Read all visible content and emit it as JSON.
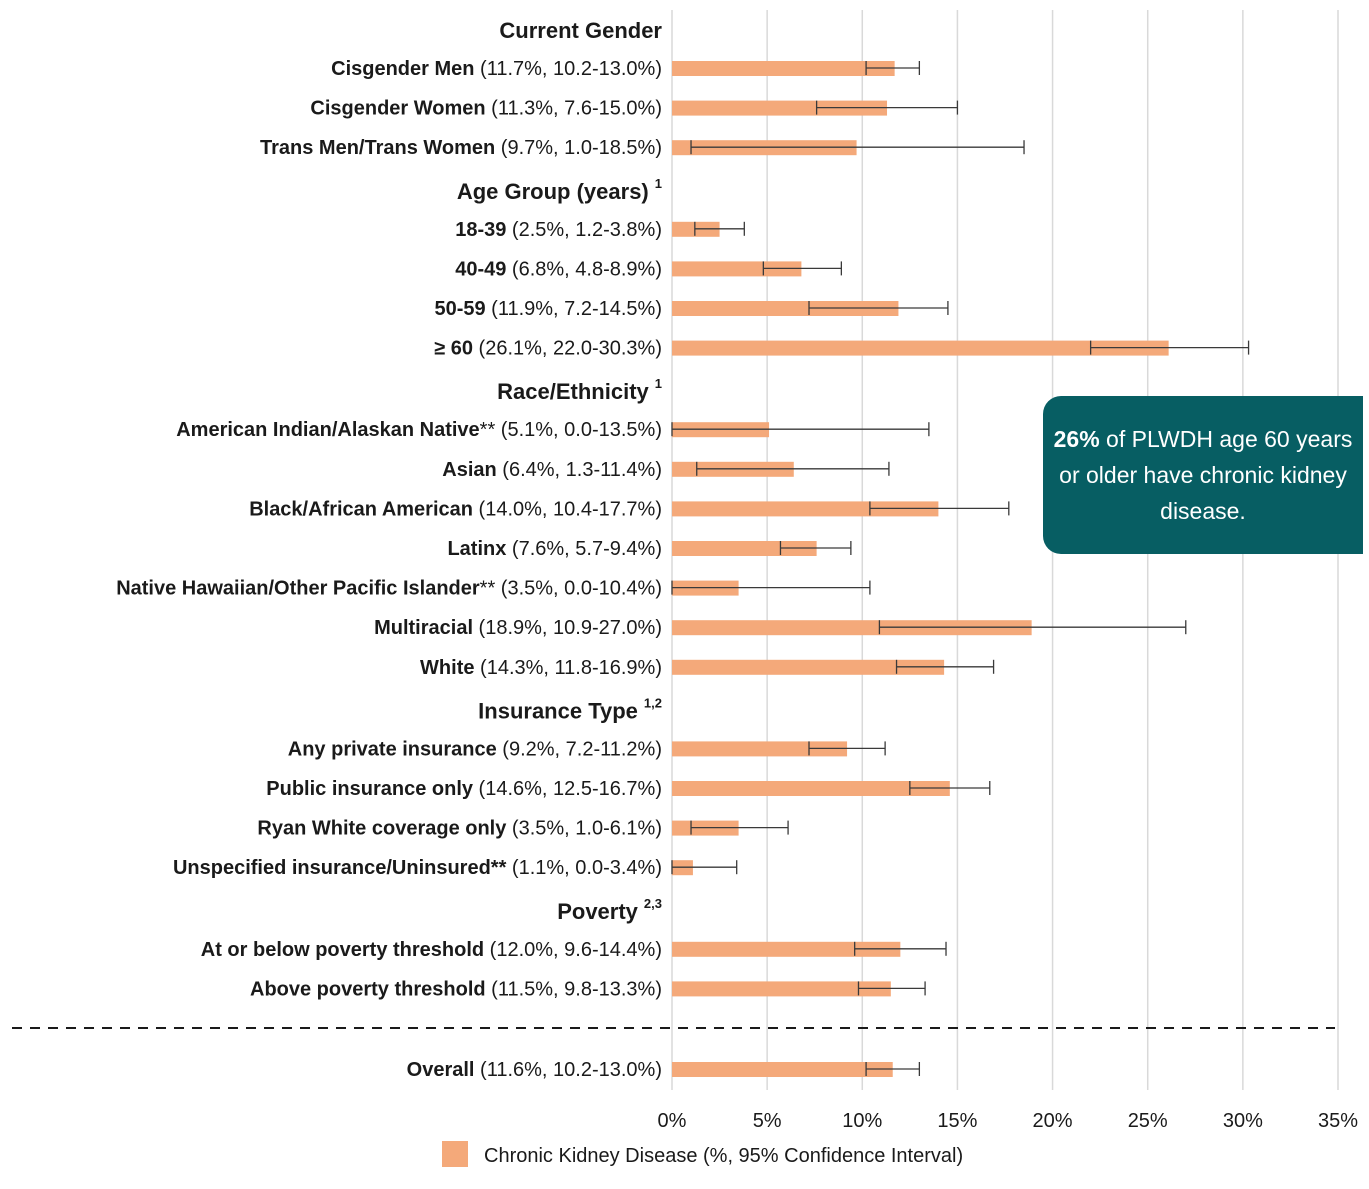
{
  "callout": {
    "highlight": "26%",
    "text": " of PLWDH age 60 years or older have chronic kidney disease."
  },
  "colors": {
    "bar": "#f4a97a",
    "errorbar": "#3a3a3a",
    "grid": "#d9d9d9",
    "callout_bg": "#075e63",
    "divider": "#1a1a1a"
  },
  "chart_data": {
    "type": "bar",
    "orientation": "horizontal",
    "xlim": [
      0,
      35
    ],
    "xticks": [
      "0%",
      "5%",
      "10%",
      "15%",
      "20%",
      "25%",
      "30%",
      "35%"
    ],
    "grid": true,
    "legend": {
      "placement": "bottom-center",
      "label": "Chronic Kidney Disease (%, 95% Confidence Interval)"
    },
    "groups": [
      {
        "header": "Current Gender",
        "sup": "",
        "rows": [
          {
            "name": "Cisgender Men",
            "suffix": "",
            "ci_text": " (11.7%, 10.2-13.0%)",
            "value": 11.7,
            "lo": 10.2,
            "hi": 13.0
          },
          {
            "name": "Cisgender Women",
            "suffix": "",
            "ci_text": " (11.3%, 7.6-15.0%)",
            "value": 11.3,
            "lo": 7.6,
            "hi": 15.0
          },
          {
            "name": "Trans Men/Trans Women",
            "suffix": "",
            "ci_text": " (9.7%, 1.0-18.5%)",
            "value": 9.7,
            "lo": 1.0,
            "hi": 18.5
          }
        ]
      },
      {
        "header": "Age Group (years)",
        "sup": "1",
        "rows": [
          {
            "name": "18-39",
            "suffix": "",
            "ci_text": " (2.5%, 1.2-3.8%)",
            "value": 2.5,
            "lo": 1.2,
            "hi": 3.8
          },
          {
            "name": "40-49",
            "suffix": "",
            "ci_text": " (6.8%, 4.8-8.9%)",
            "value": 6.8,
            "lo": 4.8,
            "hi": 8.9
          },
          {
            "name": "50-59",
            "suffix": "",
            "ci_text": " (11.9%, 7.2-14.5%)",
            "value": 11.9,
            "lo": 7.2,
            "hi": 14.5
          },
          {
            "name": "≥ 60",
            "suffix": "",
            "ci_text": " (26.1%, 22.0-30.3%)",
            "value": 26.1,
            "lo": 22.0,
            "hi": 30.3
          }
        ]
      },
      {
        "header": "Race/Ethnicity",
        "sup": "1",
        "rows": [
          {
            "name": "American Indian/Alaskan Native",
            "suffix": "**",
            "ci_text": " (5.1%, 0.0-13.5%)",
            "value": 5.1,
            "lo": 0.0,
            "hi": 13.5
          },
          {
            "name": "Asian",
            "suffix": "",
            "ci_text": " (6.4%, 1.3-11.4%)",
            "value": 6.4,
            "lo": 1.3,
            "hi": 11.4
          },
          {
            "name": "Black/African American",
            "suffix": "",
            "ci_text": " (14.0%, 10.4-17.7%)",
            "value": 14.0,
            "lo": 10.4,
            "hi": 17.7
          },
          {
            "name": "Latinx",
            "suffix": "",
            "ci_text": " (7.6%, 5.7-9.4%)",
            "value": 7.6,
            "lo": 5.7,
            "hi": 9.4
          },
          {
            "name": "Native Hawaiian/Other Pacific Islander",
            "suffix": "**",
            "ci_text": " (3.5%, 0.0-10.4%)",
            "value": 3.5,
            "lo": 0.0,
            "hi": 10.4
          },
          {
            "name": "Multiracial",
            "suffix": "",
            "ci_text": " (18.9%, 10.9-27.0%)",
            "value": 18.9,
            "lo": 10.9,
            "hi": 27.0
          },
          {
            "name": "White",
            "suffix": "",
            "ci_text": " (14.3%, 11.8-16.9%)",
            "value": 14.3,
            "lo": 11.8,
            "hi": 16.9
          }
        ]
      },
      {
        "header": "Insurance Type",
        "sup": "1,2",
        "rows": [
          {
            "name": "Any private insurance",
            "suffix": "",
            "ci_text": " (9.2%, 7.2-11.2%)",
            "value": 9.2,
            "lo": 7.2,
            "hi": 11.2
          },
          {
            "name": "Public insurance only",
            "suffix": "",
            "ci_text": " (14.6%, 12.5-16.7%)",
            "value": 14.6,
            "lo": 12.5,
            "hi": 16.7
          },
          {
            "name": "Ryan White coverage only",
            "suffix": "",
            "ci_text": " (3.5%, 1.0-6.1%)",
            "value": 3.5,
            "lo": 1.0,
            "hi": 6.1
          },
          {
            "name": "Unspecified insurance/Uninsured**",
            "suffix": "",
            "ci_text": " (1.1%, 0.0-3.4%)",
            "value": 1.1,
            "lo": 0.0,
            "hi": 3.4
          }
        ]
      },
      {
        "header": "Poverty",
        "sup": "2,3",
        "rows": [
          {
            "name": "At or below poverty threshold",
            "suffix": "",
            "ci_text": " (12.0%, 9.6-14.4%)",
            "value": 12.0,
            "lo": 9.6,
            "hi": 14.4
          },
          {
            "name": "Above poverty threshold",
            "suffix": "",
            "ci_text": " (11.5%, 9.8-13.3%)",
            "value": 11.5,
            "lo": 9.8,
            "hi": 13.3
          }
        ]
      }
    ],
    "overall": {
      "name": "Overall",
      "suffix": "",
      "ci_text": " (11.6%, 10.2-13.0%)",
      "value": 11.6,
      "lo": 10.2,
      "hi": 13.0
    }
  }
}
